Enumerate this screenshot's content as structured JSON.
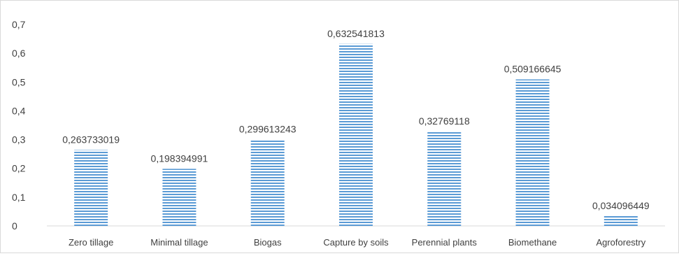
{
  "chart_data": {
    "type": "bar",
    "title": "",
    "xlabel": "",
    "ylabel": "",
    "categories": [
      "Zero tillage",
      "Minimal tillage",
      "Biogas",
      "Capture by soils",
      "Perennial plants",
      "Biomethane",
      "Agroforestry"
    ],
    "values": [
      0.263733019,
      0.198394991,
      0.299613243,
      0.632541813,
      0.32769118,
      0.509166645,
      0.034096449
    ],
    "data_labels": [
      "0,263733019",
      "0,198394991",
      "0,299613243",
      "0,632541813",
      "0,32769118",
      "0,509166645",
      "0,034096449"
    ],
    "ylim": [
      0,
      0.7
    ],
    "yticks": [
      0,
      0.1,
      0.2,
      0.3,
      0.4,
      0.5,
      0.6,
      0.7
    ],
    "ytick_labels": [
      "0",
      "0,1",
      "0,2",
      "0,3",
      "0,4",
      "0,5",
      "0,6",
      "0,7"
    ],
    "grid": false,
    "legend": "none",
    "colors": {
      "bar_line": "#5b9bd5",
      "bar_fill": "#ffffff",
      "axis": "#d9d9d9",
      "text": "#404040"
    }
  }
}
